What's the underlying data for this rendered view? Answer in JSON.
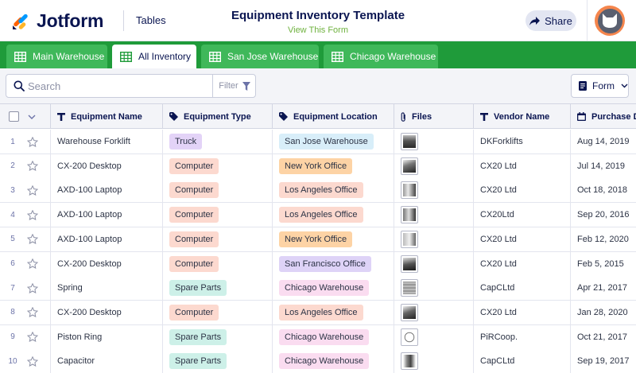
{
  "header": {
    "brand": "Jotform",
    "section": "Tables",
    "title": "Equipment Inventory Template",
    "view_form": "View This Form",
    "share": "Share"
  },
  "tabs": [
    {
      "label": "Main Warehouse",
      "active": false
    },
    {
      "label": "All Inventory",
      "active": true
    },
    {
      "label": "San Jose Warehouse",
      "active": false
    },
    {
      "label": "Chicago Warehouse",
      "active": false
    }
  ],
  "toolbar": {
    "search_placeholder": "Search",
    "filter": "Filter",
    "form": "Form"
  },
  "columns": [
    {
      "label": "Equipment Name",
      "icon": "text-icon"
    },
    {
      "label": "Equipment Type",
      "icon": "tag-icon"
    },
    {
      "label": "Equipment Location",
      "icon": "tag-icon"
    },
    {
      "label": "Files",
      "icon": "paperclip-icon"
    },
    {
      "label": "Vendor Name",
      "icon": "text-icon"
    },
    {
      "label": "Purchase Da",
      "icon": "calendar-icon"
    }
  ],
  "rows": [
    {
      "num": "1",
      "name": "Warehouse Forklift",
      "type": "Truck",
      "location": "San Jose Warehouse",
      "vendor": "DKForklifts",
      "date": "Aug 14, 2019"
    },
    {
      "num": "2",
      "name": "CX-200 Desktop",
      "type": "Computer",
      "location": "New York Office",
      "vendor": "CX20 Ltd",
      "date": "Jul 14, 2019"
    },
    {
      "num": "3",
      "name": "AXD-100 Laptop",
      "type": "Computer",
      "location": "Los Angeles Office",
      "vendor": "CX20 Ltd",
      "date": "Oct 18, 2018"
    },
    {
      "num": "4",
      "name": "AXD-100 Laptop",
      "type": "Computer",
      "location": "Los Angeles Office",
      "vendor": "CX20Ltd",
      "date": "Sep 20, 2016"
    },
    {
      "num": "5",
      "name": "AXD-100 Laptop",
      "type": "Computer",
      "location": "New York Office",
      "vendor": "CX20 Ltd",
      "date": "Feb 12, 2020"
    },
    {
      "num": "6",
      "name": "CX-200 Desktop",
      "type": "Computer",
      "location": "San Francisco Office",
      "vendor": "CX20 Ltd",
      "date": "Feb 5, 2015"
    },
    {
      "num": "7",
      "name": "Spring",
      "type": "Spare Parts",
      "location": "Chicago Warehouse",
      "vendor": "CapCLtd",
      "date": "Apr 21, 2017"
    },
    {
      "num": "8",
      "name": "CX-200 Desktop",
      "type": "Computer",
      "location": "Los Angeles Office",
      "vendor": "CX20 Ltd",
      "date": "Jan 28, 2020"
    },
    {
      "num": "9",
      "name": "Piston Ring",
      "type": "Spare Parts",
      "location": "Chicago Warehouse",
      "vendor": "PiRCoop.",
      "date": "Oct 21, 2017"
    },
    {
      "num": "10",
      "name": "Capacitor",
      "type": "Spare Parts",
      "location": "Chicago Warehouse",
      "vendor": "CapCLtd",
      "date": "Sep 19, 2017"
    }
  ],
  "colors": {
    "brand_green": "#1f9b3a",
    "tab_green": "#3fb85a",
    "type_badges": {
      "Truck": "#e3d3f7",
      "Computer": "#fcd9cf",
      "Spare Parts": "#cdf0e8"
    },
    "location_badges": {
      "San Jose Warehouse": "#d8eef9",
      "New York Office": "#fdd3a5",
      "Los Angeles Office": "#fcd9cf",
      "San Francisco Office": "#ded3f7",
      "Chicago Warehouse": "#fadcf0"
    }
  }
}
